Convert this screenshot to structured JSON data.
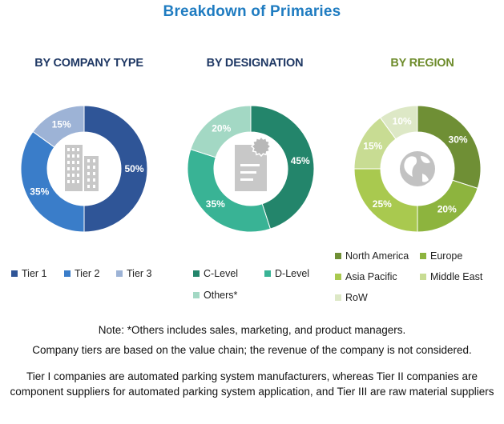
{
  "title": "Breakdown of Primaries",
  "chart_data": [
    {
      "type": "pie",
      "title": "BY COMPANY TYPE",
      "title_color": "#1f3864",
      "labels": [
        "Tier 1",
        "Tier 2",
        "Tier 3"
      ],
      "values": [
        50,
        35,
        15
      ],
      "value_labels": [
        "50%",
        "35%",
        "15%"
      ],
      "colors": [
        "#2f5597",
        "#3a7dc9",
        "#9db3d6"
      ],
      "center_icon": "building-icon",
      "legend_placement": "bottom"
    },
    {
      "type": "pie",
      "title": "BY DESIGNATION",
      "title_color": "#1f3864",
      "labels": [
        "C-Level",
        "D-Level",
        "Others*"
      ],
      "values": [
        45,
        35,
        20
      ],
      "value_labels": [
        "45%",
        "35%",
        "20%"
      ],
      "colors": [
        "#23856b",
        "#39b395",
        "#a3d8c4"
      ],
      "center_icon": "document-badge-icon",
      "legend_placement": "bottom"
    },
    {
      "type": "pie",
      "title": "BY REGION",
      "title_color": "#6e8c2c",
      "labels": [
        "North America",
        "Europe",
        "Asia Pacific",
        "Middle East",
        "RoW"
      ],
      "values": [
        30,
        20,
        25,
        15,
        10
      ],
      "value_labels": [
        "30%",
        "20%",
        "25%",
        "15%",
        "10%"
      ],
      "colors": [
        "#6f8f35",
        "#8db43e",
        "#a9c94f",
        "#c8dc93",
        "#dde8c6"
      ],
      "center_icon": "globe-icon",
      "legend_placement": "bottom"
    }
  ],
  "notes": {
    "line1": "Note: *Others includes sales, marketing, and product managers.",
    "line2": "Company tiers are based on the value chain; the revenue of the company is not considered.",
    "line3": "Tier I companies are automated parking system manufacturers, whereas Tier II companies are component  suppliers for automated parking system application, and Tier III are raw material suppliers"
  }
}
